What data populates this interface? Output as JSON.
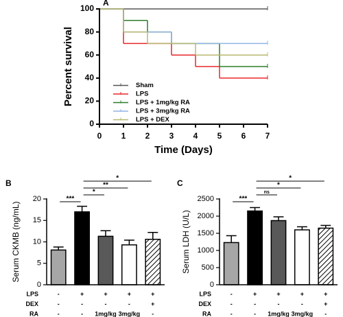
{
  "chart_data": [
    {
      "type": "line",
      "step": "post",
      "panel_label": "A",
      "xlabel": "Time (Days)",
      "ylabel": "Percent survival",
      "x": [
        0,
        1,
        2,
        3,
        4,
        5,
        6,
        7
      ],
      "xlim": [
        0,
        7
      ],
      "xticks": [
        0,
        1,
        2,
        3,
        4,
        5,
        6,
        7
      ],
      "ylim": [
        0,
        100
      ],
      "yticks": [
        0,
        20,
        40,
        60,
        80,
        100
      ],
      "legend": "lower left",
      "series": [
        {
          "name": "Sham",
          "color": "#555555",
          "values": [
            100,
            100,
            100,
            100,
            100,
            100,
            100,
            100
          ]
        },
        {
          "name": "LPS",
          "color": "#e8262a",
          "values": [
            100,
            70,
            70,
            60,
            50,
            40,
            40,
            40
          ]
        },
        {
          "name": "LPS + 1mg/kg RA",
          "color": "#2a7d2a",
          "values": [
            100,
            90,
            80,
            70,
            70,
            50,
            50,
            50
          ]
        },
        {
          "name": "LPS + 3mg/kg RA",
          "color": "#92b4e3",
          "values": [
            100,
            80,
            80,
            70,
            70,
            70,
            70,
            70
          ]
        },
        {
          "name": "LPS + DEX",
          "color": "#b8b870",
          "values": [
            100,
            80,
            70,
            70,
            60,
            60,
            60,
            60
          ]
        }
      ]
    },
    {
      "type": "bar",
      "panel_label": "B",
      "ylabel": "Serum CKMB (ng/mL)",
      "values": [
        8.1,
        17.0,
        11.3,
        9.3,
        10.6
      ],
      "errors": [
        0.7,
        1.3,
        1.3,
        1.1,
        1.6
      ],
      "colors": [
        "#a6a6a6",
        "#000000",
        "#595959",
        "#ffffff",
        "#ffffff"
      ],
      "hatched": [
        false,
        false,
        false,
        false,
        true
      ],
      "ylim": [
        0,
        20
      ],
      "yticks": [
        0,
        5,
        10,
        15,
        20
      ],
      "conditions": [
        {
          "name": "LPS",
          "labels": [
            "-",
            "+",
            "+",
            "+",
            "+"
          ]
        },
        {
          "name": "DEX",
          "labels": [
            "-",
            "-",
            "-",
            "-",
            "+"
          ]
        },
        {
          "name": "RA",
          "labels": [
            "-",
            "-",
            "1mg/kg",
            "3mg/kg",
            "-"
          ]
        }
      ],
      "annotations": [
        {
          "from": 0,
          "to": 1,
          "label": "***"
        },
        {
          "from": 1,
          "to": 2,
          "label": "*"
        },
        {
          "from": 1,
          "to": 3,
          "label": "**"
        },
        {
          "from": 1,
          "to": 4,
          "label": "*"
        }
      ]
    },
    {
      "type": "bar",
      "panel_label": "C",
      "ylabel": "Serum LDH (U/L)",
      "values": [
        1230,
        2150,
        1870,
        1600,
        1650
      ],
      "errors": [
        200,
        100,
        110,
        90,
        80
      ],
      "colors": [
        "#a6a6a6",
        "#000000",
        "#595959",
        "#ffffff",
        "#ffffff"
      ],
      "hatched": [
        false,
        false,
        false,
        false,
        true
      ],
      "ylim": [
        0,
        2500
      ],
      "yticks": [
        0,
        500,
        1000,
        1500,
        2000,
        2500
      ],
      "conditions": [
        {
          "name": "LPS",
          "labels": [
            "-",
            "+",
            "+",
            "+",
            "+"
          ]
        },
        {
          "name": "DEX",
          "labels": [
            "-",
            "-",
            "-",
            "-",
            "+"
          ]
        },
        {
          "name": "RA",
          "labels": [
            "-",
            "-",
            "1mg/kg",
            "3mg/kg",
            "-"
          ]
        }
      ],
      "annotations": [
        {
          "from": 0,
          "to": 1,
          "label": "***"
        },
        {
          "from": 1,
          "to": 2,
          "label": "ns"
        },
        {
          "from": 1,
          "to": 3,
          "label": "*"
        },
        {
          "from": 1,
          "to": 4,
          "label": "*"
        }
      ]
    }
  ]
}
